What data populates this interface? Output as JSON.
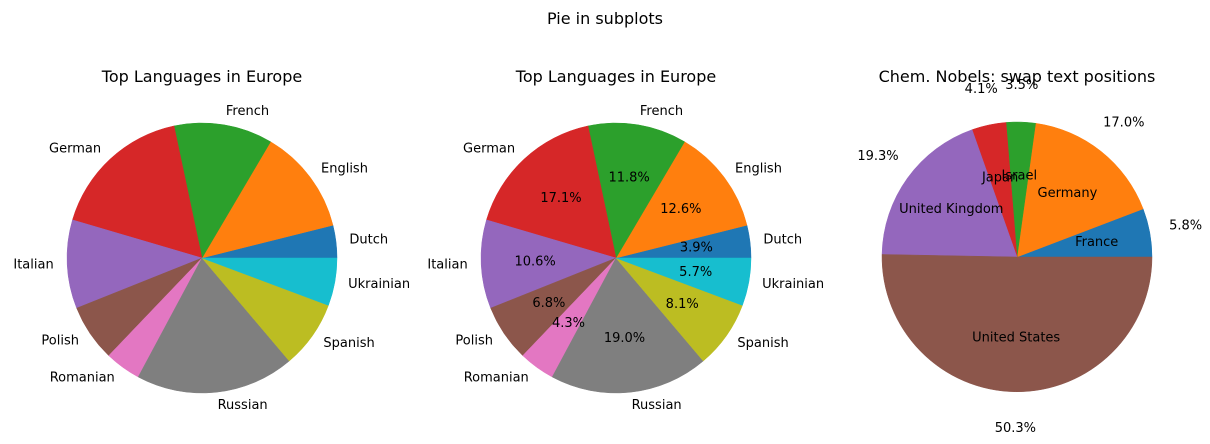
{
  "figure": {
    "suptitle": "Pie in subplots"
  },
  "chart_data": [
    {
      "type": "pie",
      "title": "Top Languages in Europe",
      "categories": [
        "Dutch",
        "English",
        "French",
        "German",
        "Italian",
        "Polish",
        "Romanian",
        "Russian",
        "Spanish",
        "Ukrainian"
      ],
      "values": [
        3.9,
        12.6,
        11.8,
        17.1,
        10.6,
        6.8,
        4.3,
        19.0,
        8.1,
        5.7
      ],
      "colors": [
        "#1f77b4",
        "#ff7f0e",
        "#2ca02c",
        "#d62728",
        "#9467bd",
        "#8c564b",
        "#e377c2",
        "#7f7f7f",
        "#bcbd22",
        "#17becf"
      ],
      "start_angle": 0,
      "direction": "counterclockwise",
      "show_percent": false,
      "percent_format": "{v}%"
    },
    {
      "type": "pie",
      "title": "Top Languages in Europe",
      "categories": [
        "Dutch",
        "English",
        "French",
        "German",
        "Italian",
        "Polish",
        "Romanian",
        "Russian",
        "Spanish",
        "Ukrainian"
      ],
      "values": [
        3.9,
        12.6,
        11.8,
        17.1,
        10.6,
        6.8,
        4.3,
        19.0,
        8.1,
        5.7
      ],
      "colors": [
        "#1f77b4",
        "#ff7f0e",
        "#2ca02c",
        "#d62728",
        "#9467bd",
        "#8c564b",
        "#e377c2",
        "#7f7f7f",
        "#bcbd22",
        "#17becf"
      ],
      "start_angle": 0,
      "direction": "counterclockwise",
      "show_percent": true,
      "percent_format": "{v}%"
    },
    {
      "type": "pie",
      "title": "Chem. Nobels: swap text positions",
      "categories": [
        "France",
        "Germany",
        "Israel",
        "Japan",
        "United Kingdom",
        "United States"
      ],
      "values": [
        5.8,
        17.0,
        3.5,
        4.1,
        19.3,
        50.3
      ],
      "colors": [
        "#1f77b4",
        "#ff7f0e",
        "#2ca02c",
        "#d62728",
        "#9467bd",
        "#8c564b"
      ],
      "start_angle": 0,
      "direction": "counterclockwise",
      "show_percent": true,
      "percent_format": "{v}%",
      "labels_inside": true
    }
  ]
}
